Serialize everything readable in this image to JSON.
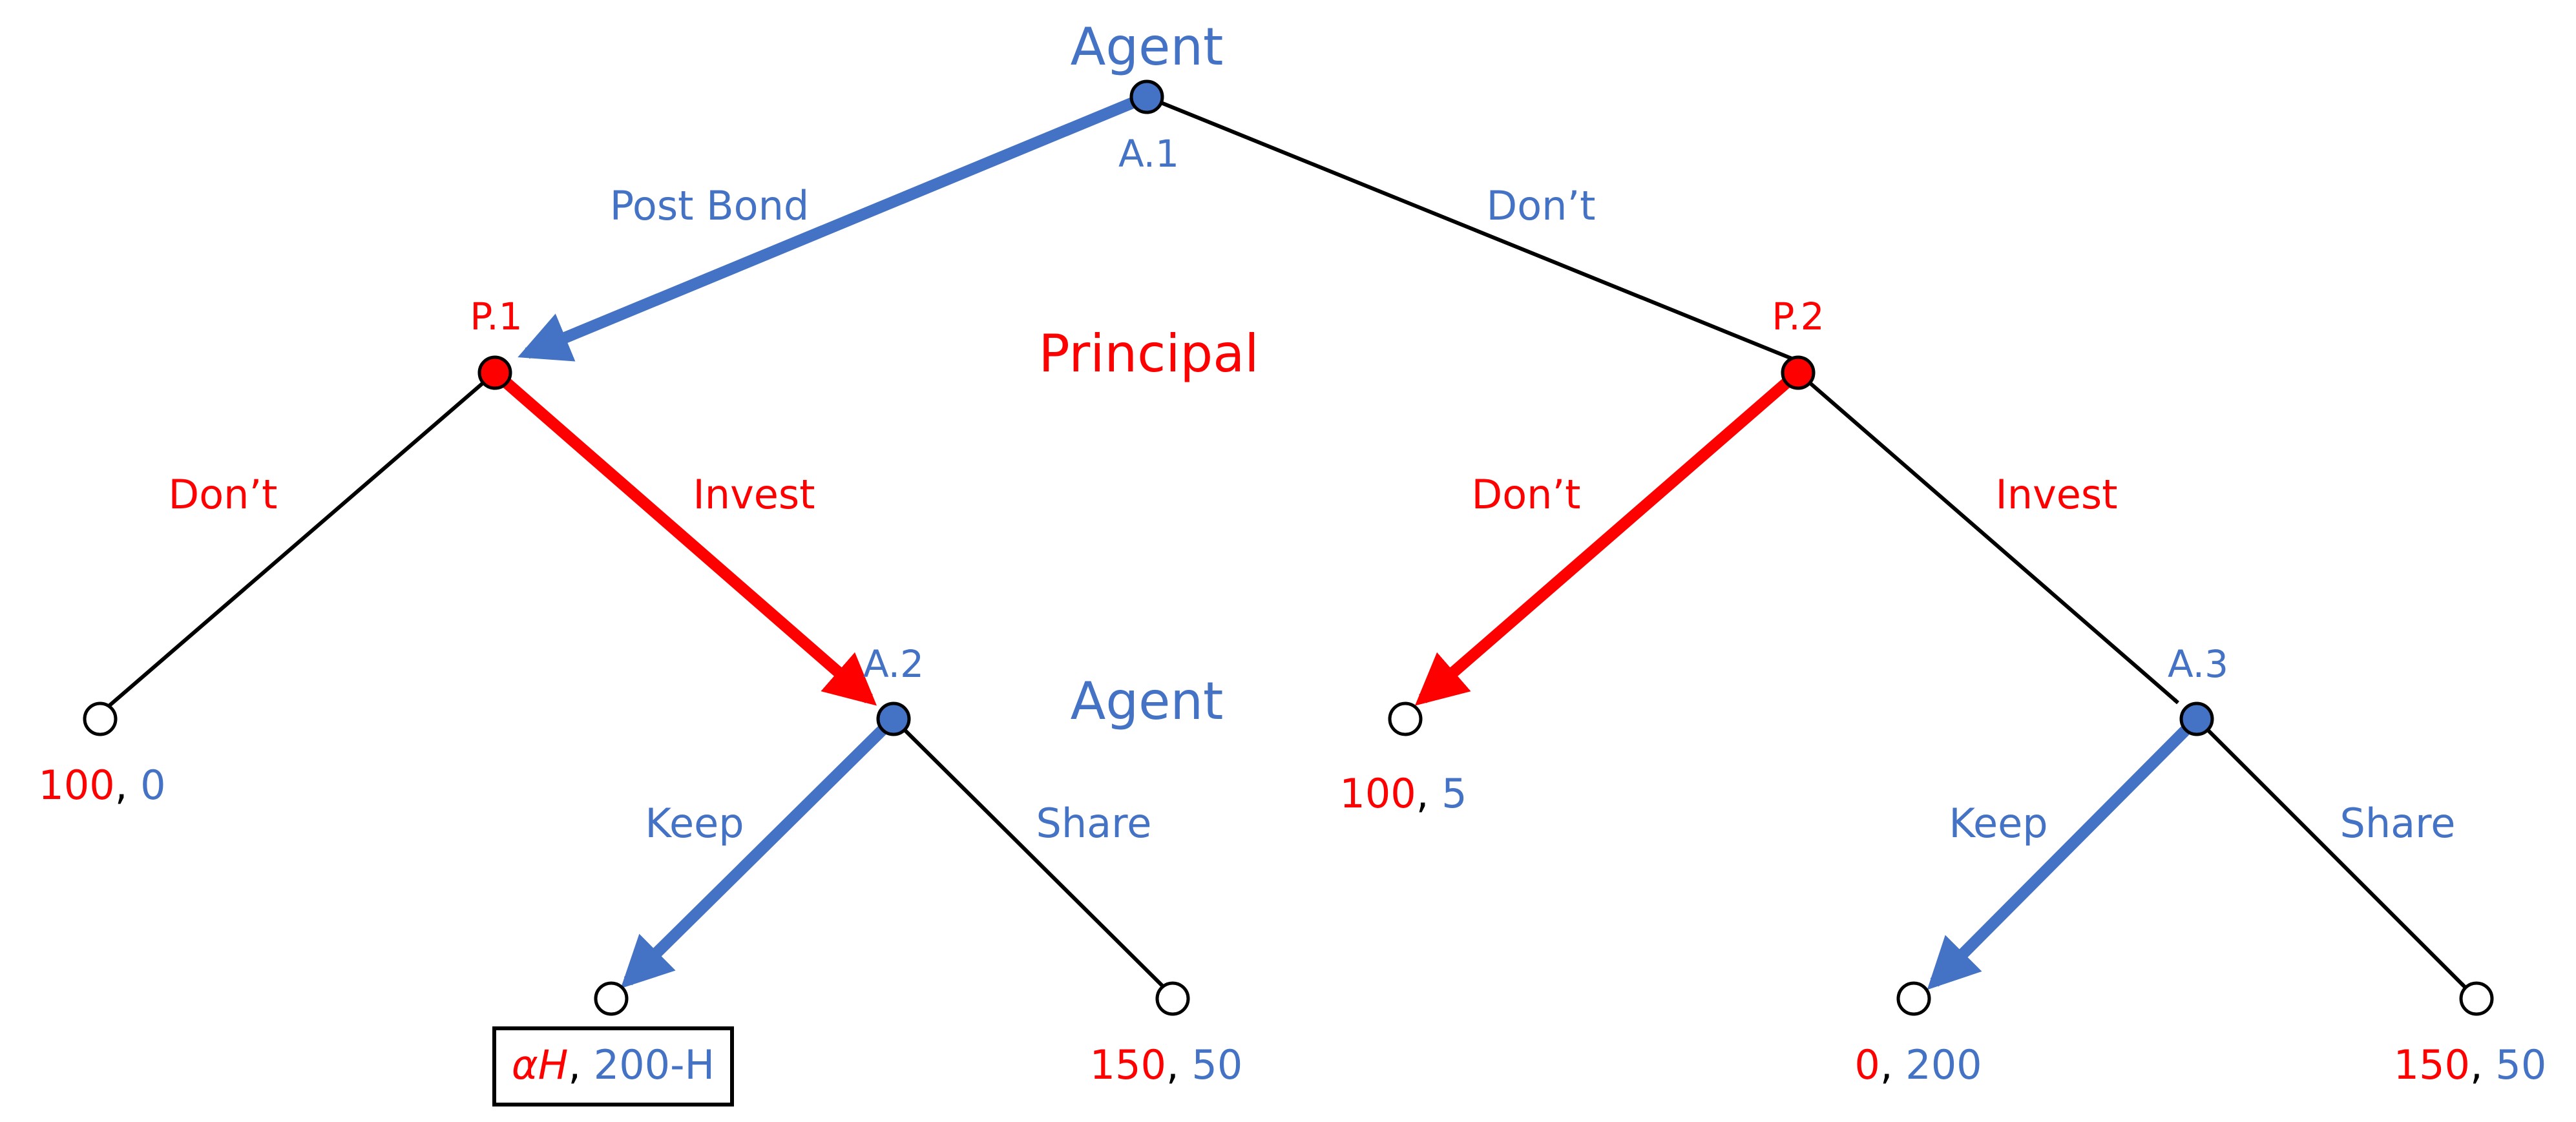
{
  "colors": {
    "agent": "#4472C4",
    "principal": "#FF0000",
    "neutral": "#000000",
    "terminal_fill": "#FFFFFF"
  },
  "players": {
    "agent_top": "Agent",
    "principal": "Principal",
    "agent_mid": "Agent"
  },
  "nodes": {
    "A1": "A.1",
    "P1": "P.1",
    "P2": "P.2",
    "A2": "A.2",
    "A3": "A.3"
  },
  "actions": {
    "post_bond": "Post Bond",
    "dont_top": "Don’t",
    "p1_dont": "Don’t",
    "p1_invest": "Invest",
    "p2_dont": "Don’t",
    "p2_invest": "Invest",
    "a2_keep": "Keep",
    "a2_share": "Share",
    "a3_keep": "Keep",
    "a3_share": "Share"
  },
  "payoffs": {
    "t1": {
      "principal": "100",
      "sep": ", ",
      "agent": "0"
    },
    "t2": {
      "principal": "αH",
      "sep": ", ",
      "agent": "200-H"
    },
    "t3": {
      "principal": "150",
      "sep": ", ",
      "agent": "50"
    },
    "t4": {
      "principal": "100",
      "sep": ", ",
      "agent": "5"
    },
    "t5": {
      "principal": "0",
      "sep": ", ",
      "agent": "200"
    },
    "t6": {
      "principal": "150",
      "sep": ", ",
      "agent": "50"
    }
  }
}
